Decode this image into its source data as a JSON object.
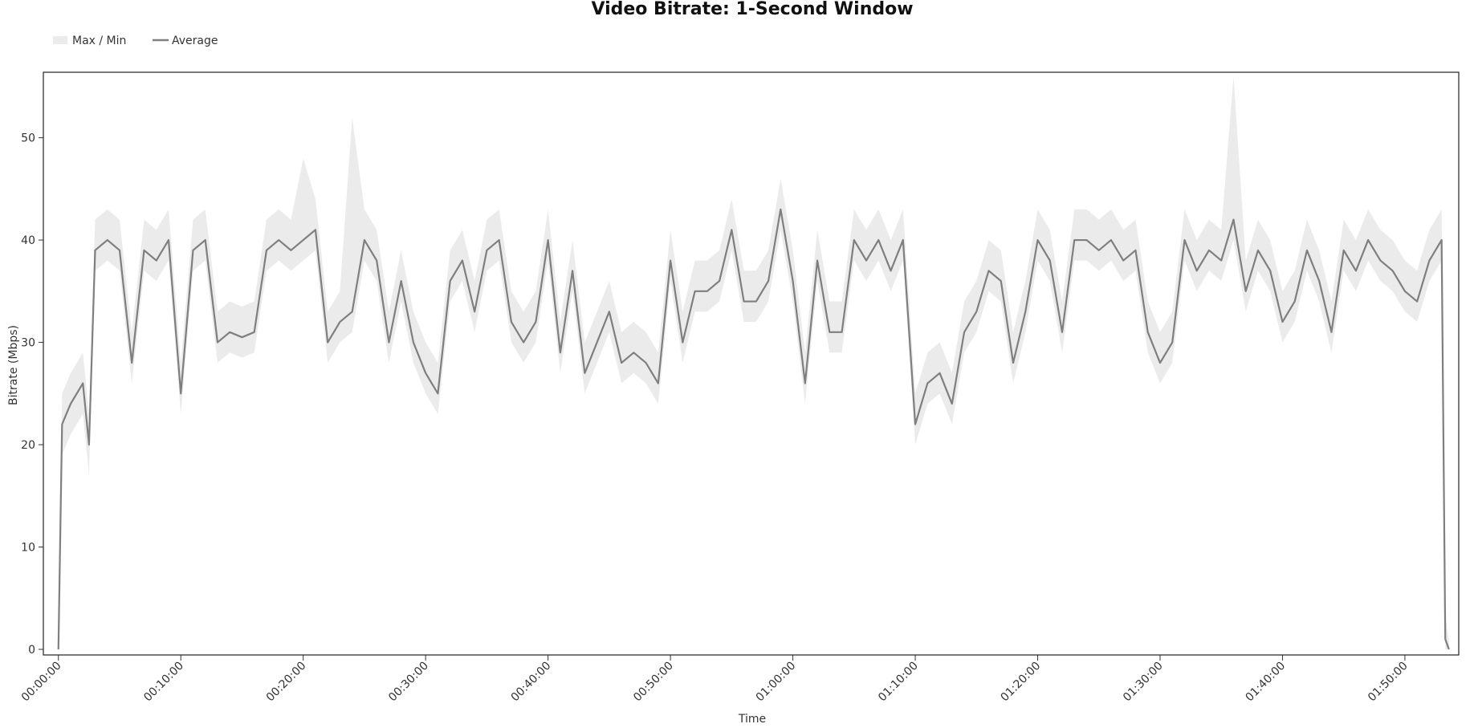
{
  "chart_data": {
    "type": "line",
    "title": "Video Bitrate: 1-Second Window",
    "x_label": "Time",
    "y_label": "Bitrate (Mbps)",
    "x": [
      0,
      0.3,
      1,
      2,
      2.5,
      3,
      4,
      5,
      6,
      7,
      8,
      9,
      10,
      11,
      12,
      13,
      14,
      15,
      16,
      17,
      18,
      19,
      20,
      21,
      22,
      23,
      24,
      25,
      26,
      27,
      28,
      29,
      30,
      31,
      32,
      33,
      34,
      35,
      36,
      37,
      38,
      39,
      40,
      41,
      42,
      43,
      44,
      45,
      46,
      47,
      48,
      49,
      50,
      51,
      52,
      53,
      54,
      55,
      56,
      57,
      58,
      59,
      60,
      61,
      62,
      63,
      64,
      65,
      66,
      67,
      68,
      69,
      70,
      71,
      72,
      73,
      74,
      75,
      76,
      77,
      78,
      79,
      80,
      81,
      82,
      83,
      84,
      85,
      86,
      87,
      88,
      89,
      90,
      91,
      92,
      93,
      94,
      95,
      96,
      97,
      98,
      99,
      100,
      101,
      102,
      103,
      104,
      105,
      106,
      107,
      108,
      109,
      110,
      111,
      112,
      113,
      113.3,
      113.6
    ],
    "series": [
      {
        "name": "Max / Min",
        "color": "#ebebeb",
        "upper": [
          1,
          25,
          27,
          29,
          23,
          42,
          43,
          42,
          31,
          42,
          41,
          43,
          28,
          42,
          43,
          33,
          34,
          33.5,
          34,
          42,
          43,
          42,
          48,
          44,
          33,
          35,
          52,
          43,
          41,
          33,
          39,
          33,
          30,
          28,
          39,
          41,
          36,
          42,
          43,
          35,
          33,
          35,
          43,
          32,
          40,
          30,
          33,
          36,
          31,
          32,
          31,
          29,
          41,
          33,
          38,
          38,
          39,
          44,
          37,
          37,
          39,
          46,
          39,
          29,
          41,
          34,
          34,
          43,
          41,
          43,
          40,
          43,
          25,
          29,
          30,
          27,
          34,
          36,
          40,
          39,
          31,
          36,
          43,
          41,
          34,
          43,
          43,
          42,
          43,
          41,
          42,
          34,
          31,
          33,
          43,
          40,
          42,
          41,
          56,
          38,
          42,
          40,
          35,
          37,
          42,
          39,
          34,
          42,
          40,
          43,
          41,
          40,
          38,
          37,
          41,
          43,
          3,
          1
        ],
        "lower": [
          0,
          19,
          21,
          23,
          17,
          37,
          38,
          37,
          26,
          37,
          36,
          38,
          23,
          37,
          38,
          28,
          29,
          28.5,
          29,
          37,
          38,
          37,
          38,
          39,
          28,
          30,
          31,
          38,
          36,
          28,
          34,
          28,
          25,
          23,
          34,
          36,
          31,
          37,
          38,
          30,
          28,
          30,
          38,
          27,
          35,
          25,
          28,
          31,
          26,
          27,
          26,
          24,
          36,
          28,
          33,
          33,
          34,
          39,
          32,
          32,
          34,
          41,
          34,
          24,
          36,
          29,
          29,
          38,
          36,
          38,
          35,
          38,
          20,
          24,
          25,
          22,
          29,
          31,
          35,
          34,
          26,
          31,
          38,
          36,
          29,
          38,
          38,
          37,
          38,
          36,
          37,
          29,
          26,
          28,
          38,
          35,
          37,
          36,
          40,
          33,
          37,
          35,
          30,
          32,
          37,
          34,
          29,
          37,
          35,
          38,
          36,
          35,
          33,
          32,
          36,
          38,
          0,
          0
        ]
      },
      {
        "name": "Average",
        "color": "#7f7f7f",
        "values": [
          0,
          22,
          24,
          26,
          20,
          39,
          40,
          39,
          28,
          39,
          38,
          40,
          25,
          39,
          40,
          30,
          31,
          30.5,
          31,
          39,
          40,
          39,
          40,
          41,
          30,
          32,
          33,
          40,
          38,
          30,
          36,
          30,
          27,
          25,
          36,
          38,
          33,
          39,
          40,
          32,
          30,
          32,
          40,
          29,
          37,
          27,
          30,
          33,
          28,
          29,
          28,
          26,
          38,
          30,
          35,
          35,
          36,
          41,
          34,
          34,
          36,
          43,
          36,
          26,
          38,
          31,
          31,
          40,
          38,
          40,
          37,
          40,
          22,
          26,
          27,
          24,
          31,
          33,
          37,
          36,
          28,
          33,
          40,
          38,
          31,
          40,
          40,
          39,
          40,
          38,
          39,
          31,
          28,
          30,
          40,
          37,
          39,
          38,
          42,
          35,
          39,
          37,
          32,
          34,
          39,
          36,
          31,
          39,
          37,
          40,
          38,
          37,
          35,
          34,
          38,
          40,
          1,
          0
        ]
      }
    ],
    "xlim": [
      -1.23,
      114.4
    ],
    "ylim": [
      -0.55,
      56.4
    ],
    "xticks": [
      {
        "value": 0,
        "label": "00:00:00"
      },
      {
        "value": 10,
        "label": "00:10:00"
      },
      {
        "value": 20,
        "label": "00:20:00"
      },
      {
        "value": 30,
        "label": "00:30:00"
      },
      {
        "value": 40,
        "label": "00:40:00"
      },
      {
        "value": 50,
        "label": "00:50:00"
      },
      {
        "value": 60,
        "label": "01:00:00"
      },
      {
        "value": 70,
        "label": "01:10:00"
      },
      {
        "value": 80,
        "label": "01:20:00"
      },
      {
        "value": 90,
        "label": "01:30:00"
      },
      {
        "value": 100,
        "label": "01:40:00"
      },
      {
        "value": 110,
        "label": "01:50:00"
      }
    ],
    "yticks": [
      0,
      10,
      20,
      30,
      40,
      50
    ]
  }
}
